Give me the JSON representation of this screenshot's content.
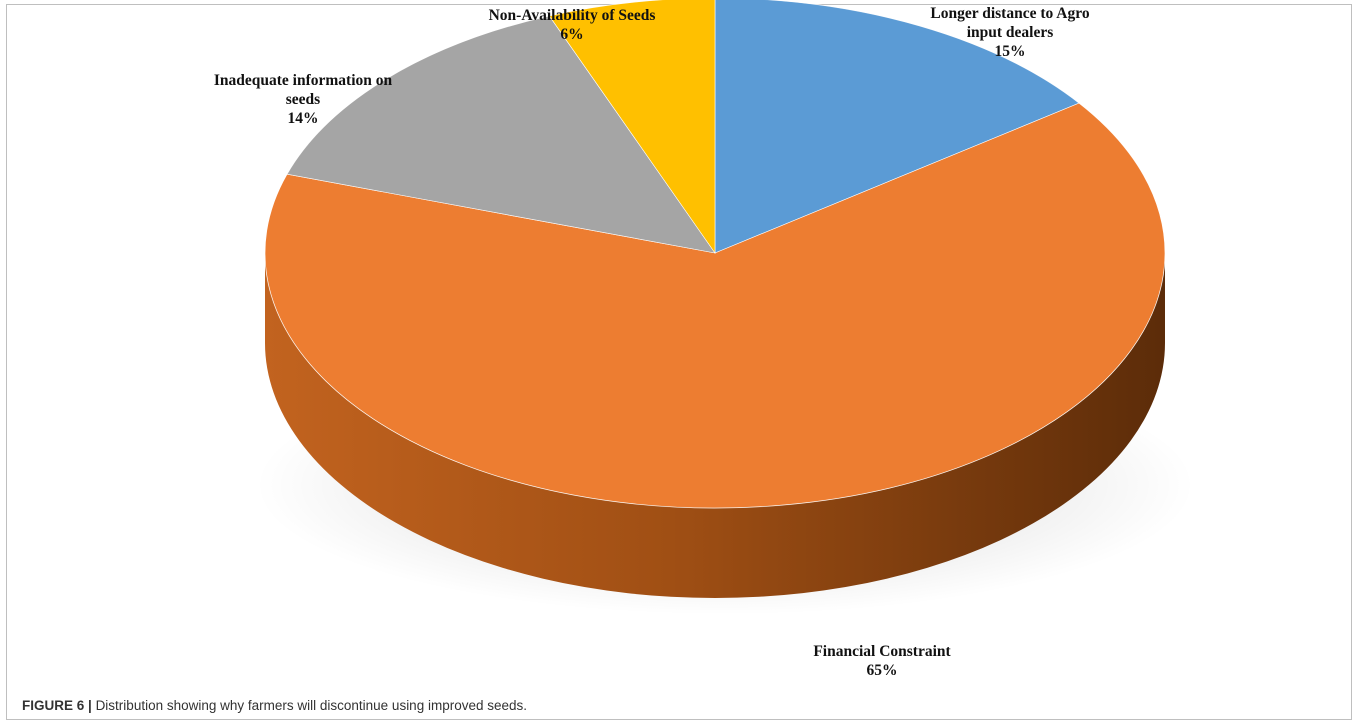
{
  "caption": {
    "label": "FIGURE 6 |",
    "text": "Distribution showing why farmers will discontinue using improved seeds."
  },
  "chart_data": {
    "type": "pie",
    "style": "3d",
    "title": "",
    "slices": [
      {
        "label": "Longer distance to Agro input dealers",
        "label_lines": [
          "Longer distance to Agro",
          "input dealers"
        ],
        "value": 15,
        "display": "15%",
        "color": "#5b9bd5"
      },
      {
        "label": "Financial Constraint",
        "label_lines": [
          "Financial Constraint"
        ],
        "value": 65,
        "display": "65%",
        "color": "#ed7d31"
      },
      {
        "label": "Inadequate information on seeds",
        "label_lines": [
          "Inadequate information on",
          "seeds"
        ],
        "value": 14,
        "display": "14%",
        "color": "#a5a5a5"
      },
      {
        "label": "Non-Availability of Seeds",
        "label_lines": [
          "Non-Availability of Seeds"
        ],
        "value": 6,
        "display": "6%",
        "color": "#ffc000"
      }
    ],
    "start": "12 o'clock",
    "direction": "clockwise",
    "legend": "none"
  }
}
